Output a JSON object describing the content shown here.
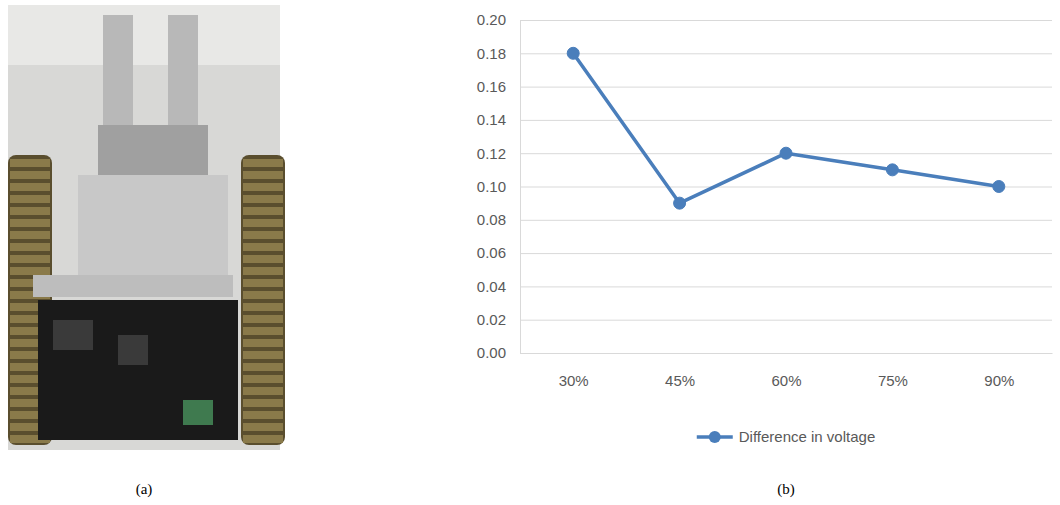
{
  "figure": {
    "panel_labels": [
      "(a)",
      "(b)"
    ]
  },
  "chart_data": {
    "type": "line",
    "categories": [
      "30%",
      "45%",
      "60%",
      "75%",
      "90%"
    ],
    "series": [
      {
        "name": "Difference in voltage",
        "color": "#4a7ebb",
        "marker": "circle",
        "values": [
          0.18,
          0.09,
          0.12,
          0.11,
          0.1
        ]
      }
    ],
    "ylim": [
      0,
      0.2
    ],
    "yticks": [
      {
        "value": 0,
        "label": "0.00"
      },
      {
        "value": 0.02,
        "label": "0.02"
      },
      {
        "value": 0.04,
        "label": "0.04"
      },
      {
        "value": 0.06,
        "label": "0.06"
      },
      {
        "value": 0.08,
        "label": "0.08"
      },
      {
        "value": 0.1,
        "label": "0.10"
      },
      {
        "value": 0.12,
        "label": "0.12"
      },
      {
        "value": 0.14,
        "label": "0.14"
      },
      {
        "value": 0.16,
        "label": "0.16"
      },
      {
        "value": 0.18,
        "label": "0.18"
      },
      {
        "value": 0.2,
        "label": "0.20"
      }
    ],
    "grid": true,
    "legend": "bottom"
  }
}
